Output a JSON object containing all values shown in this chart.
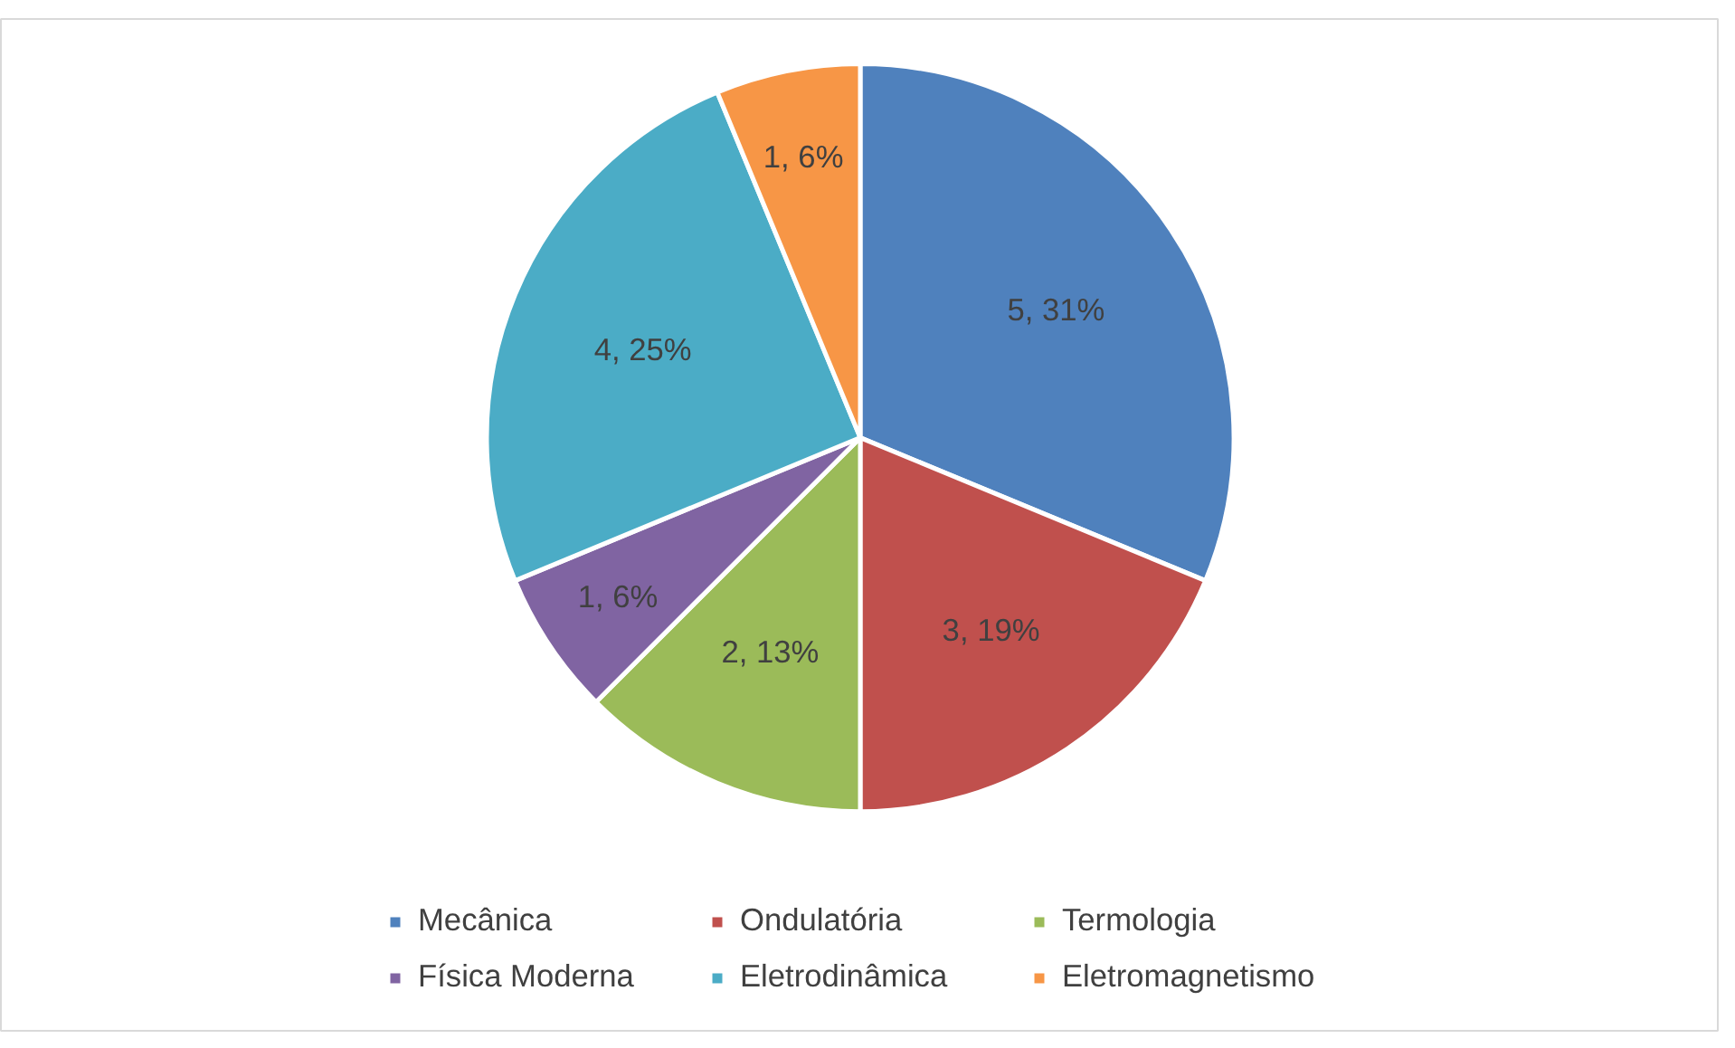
{
  "chart_data": {
    "type": "pie",
    "categories": [
      "Mecânica",
      "Ondulatória",
      "Termologia",
      "Física Moderna",
      "Eletrodinâmica",
      "Eletromagnetismo"
    ],
    "values": [
      5,
      3,
      2,
      1,
      4,
      1
    ],
    "colors": [
      "#4f81bd",
      "#c0504d",
      "#9bbb59",
      "#8064a2",
      "#4bacc6",
      "#f79646"
    ],
    "value_labels": [
      "5, 31%",
      "3, 19%",
      "2, 13%",
      "1, 6%",
      "4, 25%",
      "1, 6%"
    ],
    "legend": "bottom"
  }
}
